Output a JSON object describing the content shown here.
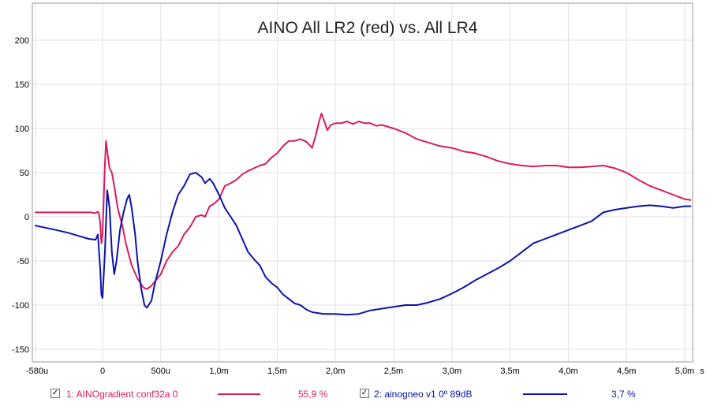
{
  "chart_data": {
    "type": "line",
    "title": "AINO All LR2 (red) vs. All LR4",
    "x_unit": "ms",
    "xlim": [
      -0.58,
      5.05
    ],
    "ylim": [
      -160,
      230
    ],
    "grid": true,
    "x_ticks": [
      {
        "v": -0.58,
        "label": "-580u"
      },
      {
        "v": 0,
        "label": "0"
      },
      {
        "v": 0.5,
        "label": "500u"
      },
      {
        "v": 1.0,
        "label": "1,0m"
      },
      {
        "v": 1.5,
        "label": "1,5m"
      },
      {
        "v": 2.0,
        "label": "2,0m"
      },
      {
        "v": 2.5,
        "label": "2,5m"
      },
      {
        "v": 3.0,
        "label": "3,0m"
      },
      {
        "v": 3.5,
        "label": "3,5m"
      },
      {
        "v": 4.0,
        "label": "4,0m"
      },
      {
        "v": 4.5,
        "label": "4,5m"
      },
      {
        "v": 5.0,
        "label": "5,0m"
      }
    ],
    "x_unit_label": "s",
    "y_ticks": [
      {
        "v": 200,
        "label": "200"
      },
      {
        "v": 150,
        "label": "150"
      },
      {
        "v": 100,
        "label": "100"
      },
      {
        "v": 50,
        "label": "50"
      },
      {
        "v": 0,
        "label": "0"
      },
      {
        "v": -50,
        "label": "-50"
      },
      {
        "v": -100,
        "label": "-100"
      },
      {
        "v": -150,
        "label": "-150"
      }
    ],
    "series": [
      {
        "name": "1: AINOgradient conf32a 0",
        "color": "#d81b60",
        "percent": "55,9 %",
        "checked": true,
        "points": [
          [
            -0.58,
            5
          ],
          [
            -0.1,
            5
          ],
          [
            -0.06,
            4
          ],
          [
            -0.04,
            6
          ],
          [
            -0.03,
            3
          ],
          [
            -0.02,
            -8
          ],
          [
            -0.01,
            -30
          ],
          [
            0.0,
            -20
          ],
          [
            0.02,
            60
          ],
          [
            0.03,
            86
          ],
          [
            0.045,
            70
          ],
          [
            0.06,
            55
          ],
          [
            0.08,
            50
          ],
          [
            0.1,
            35
          ],
          [
            0.13,
            10
          ],
          [
            0.15,
            0
          ],
          [
            0.17,
            -10
          ],
          [
            0.2,
            -30
          ],
          [
            0.25,
            -55
          ],
          [
            0.3,
            -70
          ],
          [
            0.35,
            -80
          ],
          [
            0.38,
            -82
          ],
          [
            0.42,
            -78
          ],
          [
            0.47,
            -70
          ],
          [
            0.5,
            -65
          ],
          [
            0.55,
            -50
          ],
          [
            0.6,
            -40
          ],
          [
            0.65,
            -33
          ],
          [
            0.7,
            -20
          ],
          [
            0.75,
            -12
          ],
          [
            0.8,
            0
          ],
          [
            0.85,
            2
          ],
          [
            0.88,
            0
          ],
          [
            0.92,
            12
          ],
          [
            0.96,
            15
          ],
          [
            1.0,
            20
          ],
          [
            1.05,
            35
          ],
          [
            1.1,
            38
          ],
          [
            1.15,
            42
          ],
          [
            1.2,
            48
          ],
          [
            1.25,
            52
          ],
          [
            1.3,
            55
          ],
          [
            1.35,
            58
          ],
          [
            1.4,
            60
          ],
          [
            1.45,
            67
          ],
          [
            1.5,
            72
          ],
          [
            1.55,
            80
          ],
          [
            1.6,
            86
          ],
          [
            1.65,
            86
          ],
          [
            1.7,
            88
          ],
          [
            1.75,
            85
          ],
          [
            1.8,
            78
          ],
          [
            1.83,
            92
          ],
          [
            1.86,
            108
          ],
          [
            1.88,
            117
          ],
          [
            1.9,
            110
          ],
          [
            1.93,
            98
          ],
          [
            1.96,
            104
          ],
          [
            2.0,
            106
          ],
          [
            2.05,
            106
          ],
          [
            2.1,
            108
          ],
          [
            2.15,
            105
          ],
          [
            2.2,
            108
          ],
          [
            2.25,
            106
          ],
          [
            2.3,
            106
          ],
          [
            2.35,
            103
          ],
          [
            2.4,
            104
          ],
          [
            2.5,
            100
          ],
          [
            2.6,
            95
          ],
          [
            2.7,
            88
          ],
          [
            2.8,
            84
          ],
          [
            2.9,
            80
          ],
          [
            3.0,
            78
          ],
          [
            3.1,
            74
          ],
          [
            3.2,
            72
          ],
          [
            3.3,
            68
          ],
          [
            3.4,
            63
          ],
          [
            3.5,
            60
          ],
          [
            3.6,
            58
          ],
          [
            3.7,
            57
          ],
          [
            3.8,
            58
          ],
          [
            3.9,
            58
          ],
          [
            4.0,
            56
          ],
          [
            4.1,
            56
          ],
          [
            4.2,
            57
          ],
          [
            4.3,
            58
          ],
          [
            4.4,
            55
          ],
          [
            4.5,
            50
          ],
          [
            4.6,
            42
          ],
          [
            4.7,
            35
          ],
          [
            4.8,
            30
          ],
          [
            4.9,
            25
          ],
          [
            5.0,
            20
          ],
          [
            5.05,
            19
          ]
        ]
      },
      {
        "name": "2: ainogneo v1 0º 89dB",
        "color": "#0a14aa",
        "percent": "3,7 %",
        "checked": true,
        "points": [
          [
            -0.58,
            -10
          ],
          [
            -0.4,
            -15
          ],
          [
            -0.3,
            -18
          ],
          [
            -0.2,
            -22
          ],
          [
            -0.12,
            -25
          ],
          [
            -0.06,
            -26
          ],
          [
            -0.04,
            -20
          ],
          [
            -0.03,
            -40
          ],
          [
            -0.02,
            -60
          ],
          [
            -0.01,
            -88
          ],
          [
            0.0,
            -92
          ],
          [
            0.02,
            -40
          ],
          [
            0.04,
            30
          ],
          [
            0.06,
            10
          ],
          [
            0.08,
            -40
          ],
          [
            0.1,
            -65
          ],
          [
            0.12,
            -50
          ],
          [
            0.15,
            -15
          ],
          [
            0.18,
            5
          ],
          [
            0.21,
            20
          ],
          [
            0.23,
            25
          ],
          [
            0.25,
            10
          ],
          [
            0.28,
            -20
          ],
          [
            0.3,
            -50
          ],
          [
            0.33,
            -80
          ],
          [
            0.36,
            -100
          ],
          [
            0.38,
            -103
          ],
          [
            0.42,
            -95
          ],
          [
            0.45,
            -75
          ],
          [
            0.5,
            -50
          ],
          [
            0.55,
            -20
          ],
          [
            0.6,
            5
          ],
          [
            0.65,
            25
          ],
          [
            0.7,
            35
          ],
          [
            0.75,
            48
          ],
          [
            0.8,
            50
          ],
          [
            0.85,
            45
          ],
          [
            0.88,
            38
          ],
          [
            0.92,
            43
          ],
          [
            0.95,
            38
          ],
          [
            1.0,
            25
          ],
          [
            1.05,
            10
          ],
          [
            1.1,
            0
          ],
          [
            1.15,
            -10
          ],
          [
            1.2,
            -25
          ],
          [
            1.25,
            -40
          ],
          [
            1.3,
            -48
          ],
          [
            1.35,
            -55
          ],
          [
            1.4,
            -68
          ],
          [
            1.45,
            -75
          ],
          [
            1.5,
            -80
          ],
          [
            1.55,
            -88
          ],
          [
            1.6,
            -93
          ],
          [
            1.65,
            -98
          ],
          [
            1.7,
            -100
          ],
          [
            1.75,
            -105
          ],
          [
            1.8,
            -108
          ],
          [
            1.9,
            -110
          ],
          [
            2.0,
            -110
          ],
          [
            2.1,
            -111
          ],
          [
            2.2,
            -110
          ],
          [
            2.3,
            -106
          ],
          [
            2.4,
            -104
          ],
          [
            2.5,
            -102
          ],
          [
            2.6,
            -100
          ],
          [
            2.7,
            -100
          ],
          [
            2.8,
            -97
          ],
          [
            2.9,
            -93
          ],
          [
            3.0,
            -87
          ],
          [
            3.1,
            -80
          ],
          [
            3.2,
            -72
          ],
          [
            3.3,
            -65
          ],
          [
            3.4,
            -58
          ],
          [
            3.5,
            -50
          ],
          [
            3.6,
            -40
          ],
          [
            3.7,
            -30
          ],
          [
            3.8,
            -25
          ],
          [
            3.9,
            -20
          ],
          [
            4.0,
            -15
          ],
          [
            4.1,
            -10
          ],
          [
            4.2,
            -5
          ],
          [
            4.3,
            5
          ],
          [
            4.4,
            8
          ],
          [
            4.5,
            10
          ],
          [
            4.6,
            12
          ],
          [
            4.7,
            13
          ],
          [
            4.8,
            12
          ],
          [
            4.9,
            10
          ],
          [
            5.0,
            12
          ],
          [
            5.05,
            12
          ]
        ]
      }
    ]
  }
}
